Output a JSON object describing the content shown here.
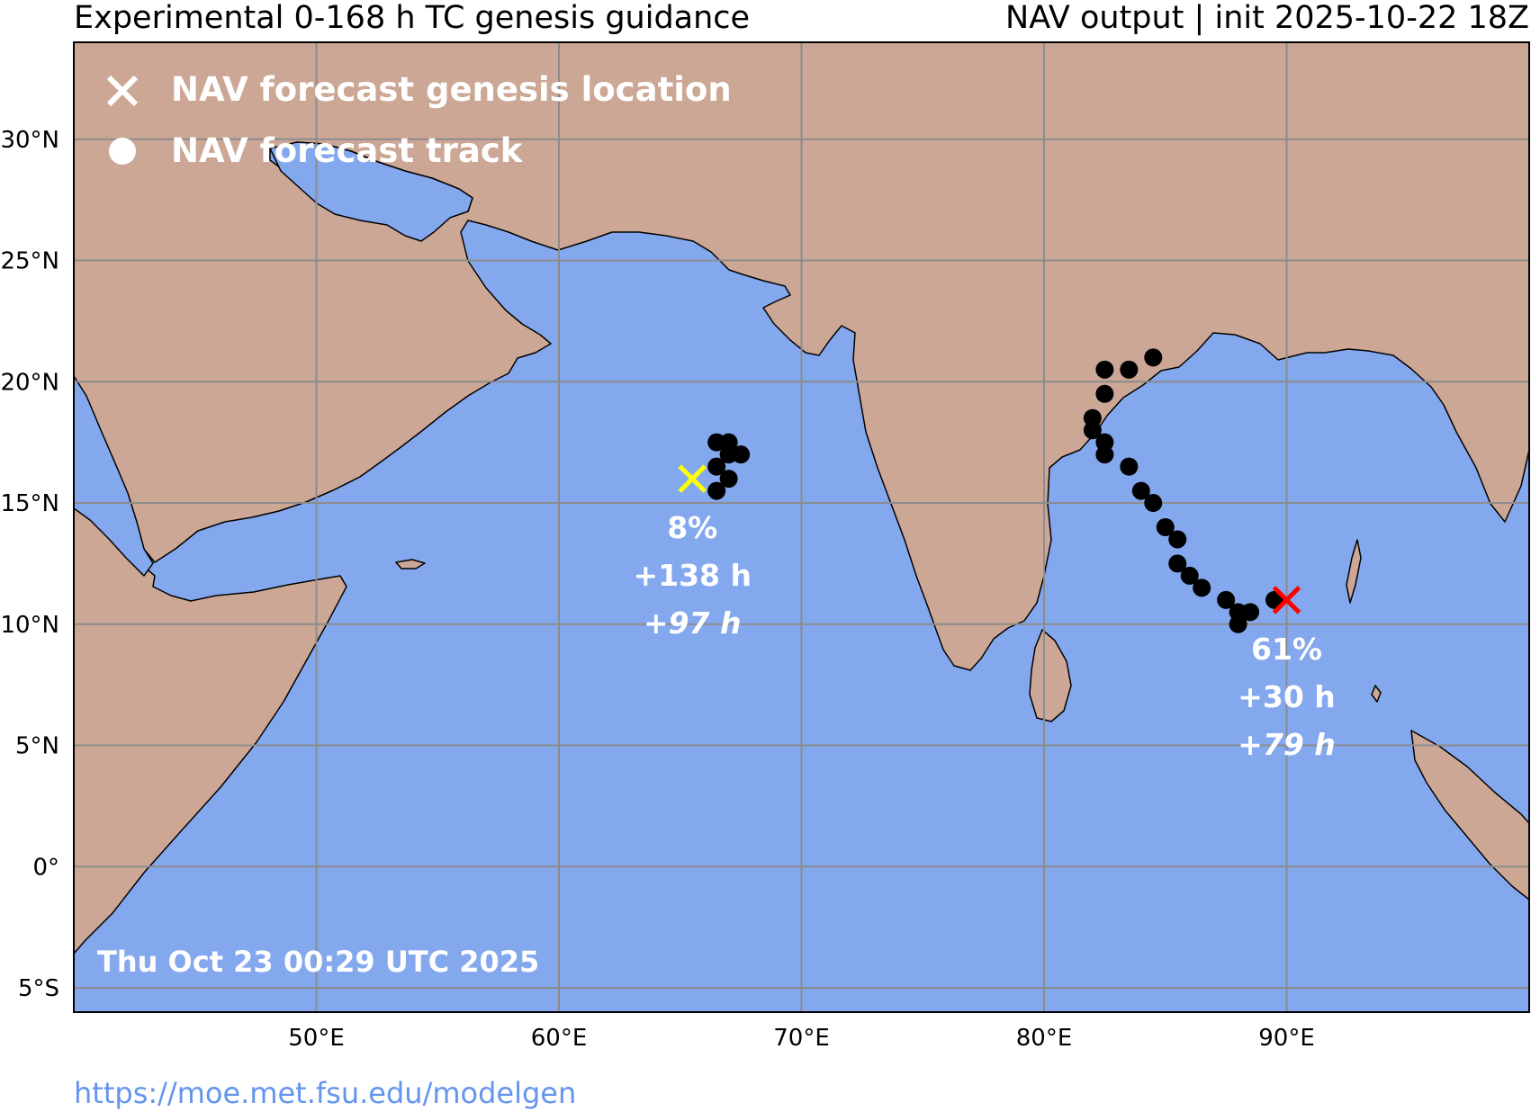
{
  "header": {
    "title_left": "Experimental 0-168 h TC genesis guidance",
    "title_right": "NAV output | init 2025-10-22 18Z"
  },
  "legend": {
    "genesis_label": "NAV forecast genesis location",
    "track_label": "NAV forecast track"
  },
  "timestamp": "Thu Oct 23 00:29 UTC 2025",
  "footer_url": "https://moe.met.fsu.edu/modelgen",
  "colors": {
    "ocean": "#84A8EE",
    "land": "#CCA795",
    "grid": "#8c8c8c",
    "track": "#000000",
    "genesis_weak": "#FFFF00",
    "genesis_strong": "#FF0000",
    "label": "#FFFFFF"
  },
  "map": {
    "lon_range": [
      40,
      100
    ],
    "lat_range": [
      -6,
      34
    ],
    "lon_ticks": [
      {
        "value": 50,
        "label": "50°E"
      },
      {
        "value": 60,
        "label": "60°E"
      },
      {
        "value": 70,
        "label": "70°E"
      },
      {
        "value": 80,
        "label": "80°E"
      },
      {
        "value": 90,
        "label": "90°E"
      }
    ],
    "lat_ticks": [
      {
        "value": 30,
        "label": "30°N"
      },
      {
        "value": 25,
        "label": "25°N"
      },
      {
        "value": 20,
        "label": "20°N"
      },
      {
        "value": 15,
        "label": "15°N"
      },
      {
        "value": 10,
        "label": "10°N"
      },
      {
        "value": 5,
        "label": "5°N"
      },
      {
        "value": 0,
        "label": "0°"
      },
      {
        "value": -5,
        "label": "5°S"
      }
    ]
  },
  "systems": [
    {
      "genesis": {
        "lon": 65.5,
        "lat": 16.0,
        "color": "#FFFF00"
      },
      "probability": "8%",
      "lead_time": "+138 h",
      "duration": "+97 h",
      "track": [
        [
          66.5,
          15.5
        ],
        [
          67.0,
          16.0
        ],
        [
          66.5,
          16.5
        ],
        [
          67.0,
          17.0
        ],
        [
          67.5,
          17.0
        ],
        [
          67.0,
          17.5
        ],
        [
          66.5,
          17.5
        ]
      ]
    },
    {
      "genesis": {
        "lon": 90.0,
        "lat": 11.0,
        "color": "#FF0000"
      },
      "probability": "61%",
      "lead_time": "+30 h",
      "duration": "+79 h",
      "track": [
        [
          89.5,
          11.0
        ],
        [
          88.5,
          10.5
        ],
        [
          88.0,
          10.0
        ],
        [
          88.0,
          10.5
        ],
        [
          87.5,
          11.0
        ],
        [
          86.5,
          11.5
        ],
        [
          86.0,
          12.0
        ],
        [
          85.5,
          12.5
        ],
        [
          85.5,
          13.5
        ],
        [
          85.0,
          14.0
        ],
        [
          84.5,
          15.0
        ],
        [
          84.0,
          15.5
        ],
        [
          83.5,
          16.5
        ],
        [
          82.5,
          17.0
        ],
        [
          82.5,
          17.5
        ],
        [
          82.0,
          18.0
        ],
        [
          82.0,
          18.5
        ],
        [
          82.5,
          19.5
        ],
        [
          82.5,
          20.5
        ],
        [
          83.5,
          20.5
        ],
        [
          84.5,
          21.0
        ]
      ]
    }
  ]
}
